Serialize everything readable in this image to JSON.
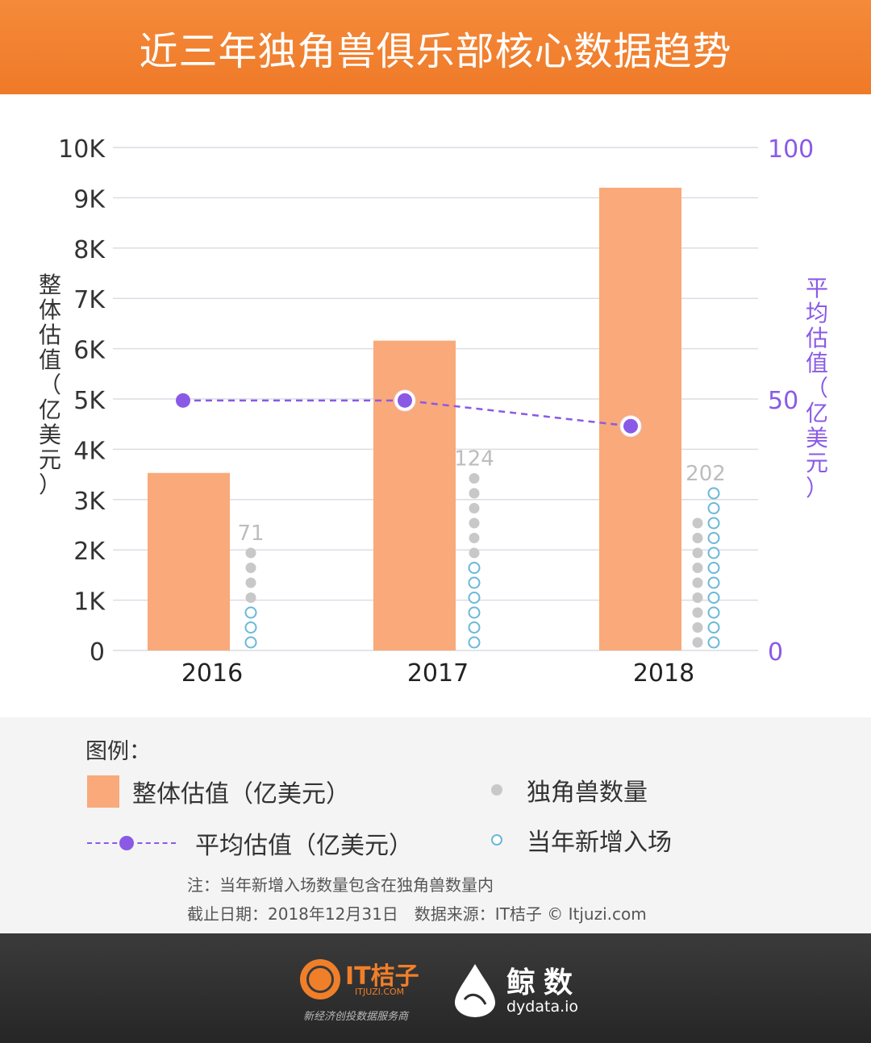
{
  "header": {
    "title": "近三年独角兽俱乐部核心数据趋势"
  },
  "chart_data": {
    "type": "bar",
    "title": "近三年独角兽俱乐部核心数据趋势",
    "categories": [
      "2016",
      "2017",
      "2018"
    ],
    "y_left": {
      "label": "整体估值（亿美元）",
      "range": [
        0,
        10000
      ],
      "ticks": [
        "0",
        "1K",
        "2K",
        "3K",
        "4K",
        "5K",
        "6K",
        "7K",
        "8K",
        "9K",
        "10K"
      ]
    },
    "y_right": {
      "label": "平均估值（亿美元）",
      "range": [
        0,
        100
      ],
      "ticks": [
        "0",
        "50",
        "100"
      ]
    },
    "series": [
      {
        "name": "整体估值（亿美元）",
        "kind": "bar",
        "axis": "left",
        "color": "#f9a97a",
        "values": [
          3530,
          6160,
          9200
        ]
      },
      {
        "name": "平均估值（亿美元）",
        "kind": "line",
        "axis": "right",
        "color": "#8a5ae6",
        "values": [
          49.7,
          49.7,
          44.6
        ]
      },
      {
        "name": "独角兽数量",
        "kind": "dots",
        "color": "#c8c8c8",
        "values": [
          71,
          124,
          202
        ],
        "labels": [
          "71",
          "124",
          "202"
        ]
      },
      {
        "name": "当年新增入场",
        "kind": "dots",
        "color": "#6ab8d8",
        "values": [
          34,
          63,
          109
        ]
      }
    ],
    "grid": true
  },
  "legend": {
    "title": "图例：",
    "items": {
      "bar": "整体估值（亿美元）",
      "line": "平均估值（亿美元）",
      "unicorn": "独角兽数量",
      "new": "当年新增入场"
    }
  },
  "notes": {
    "note1": "注：当年新增入场数量包含在独角兽数量内",
    "note2": "截止日期：2018年12月31日　数据来源：IT桔子 © Itjuzi.com"
  },
  "footer": {
    "logo1_name": "IT桔子",
    "logo1_sub": "ITJUZI.COM",
    "logo1_slogan": "新经济创投数据服务商",
    "logo2_name": "鲸数",
    "logo2_sub": "dydata.io"
  }
}
